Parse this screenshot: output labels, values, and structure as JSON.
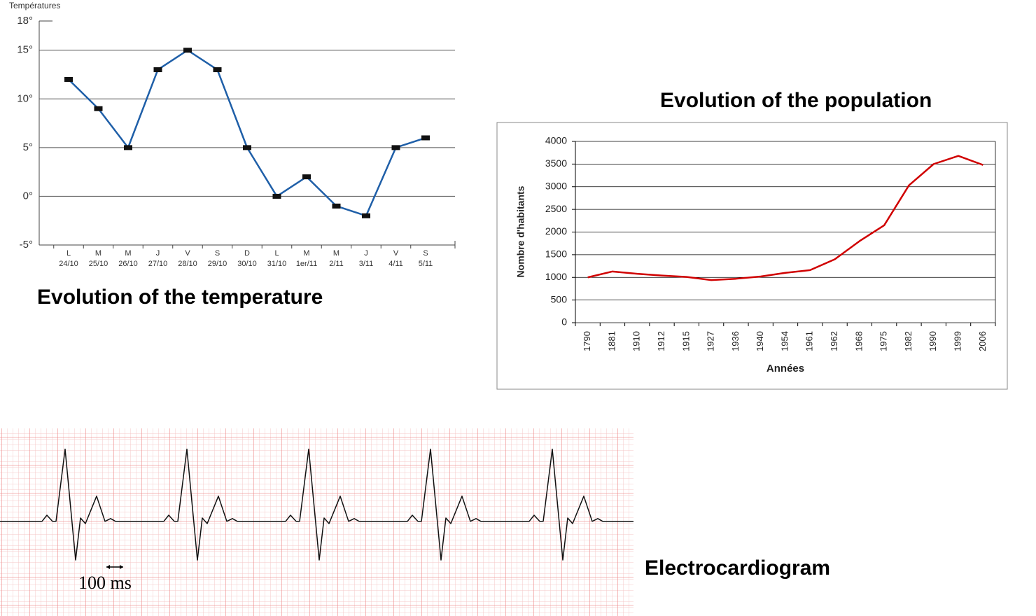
{
  "chart_data": [
    {
      "type": "line",
      "title": "Evolution of the temperature",
      "ylabel": "Températures",
      "weekdays": [
        "L",
        "M",
        "M",
        "J",
        "V",
        "S",
        "D",
        "L",
        "M",
        "M",
        "J",
        "V",
        "S"
      ],
      "categories": [
        "24/10",
        "25/10",
        "26/10",
        "27/10",
        "28/10",
        "29/10",
        "30/10",
        "31/10",
        "1er/11",
        "2/11",
        "3/11",
        "4/11",
        "5/11"
      ],
      "values": [
        12,
        9,
        5,
        13,
        15,
        13,
        5,
        0,
        2,
        -1,
        -2,
        5,
        6
      ],
      "color": "#1f5fa8",
      "marker_color": "#111111",
      "ylim": [
        -5,
        18
      ],
      "yticks": [
        {
          "value": -5,
          "label": "-5°"
        },
        {
          "value": 0,
          "label": "0°"
        },
        {
          "value": 5,
          "label": "5°"
        },
        {
          "value": 10,
          "label": "10°"
        },
        {
          "value": 15,
          "label": "15°"
        },
        {
          "value": 18,
          "label": "18°"
        }
      ],
      "grid": true
    },
    {
      "type": "line",
      "title": "Evolution of the population",
      "xlabel": "Années",
      "ylabel": "Nombre d'habitants",
      "categories": [
        "1790",
        "1881",
        "1910",
        "1912",
        "1915",
        "1927",
        "1936",
        "1940",
        "1954",
        "1961",
        "1962",
        "1968",
        "1975",
        "1982",
        "1990",
        "1999",
        "2006"
      ],
      "values": [
        1000,
        1130,
        1080,
        1040,
        1010,
        940,
        970,
        1020,
        1100,
        1160,
        1400,
        1800,
        2150,
        3030,
        3500,
        3680,
        3480
      ],
      "color": "#d00000",
      "ylim": [
        0,
        4000
      ],
      "yticks": [
        0,
        500,
        1000,
        1500,
        2000,
        2500,
        3000,
        3500,
        4000
      ],
      "grid": true
    },
    {
      "type": "line",
      "title": "Electrocardiogram",
      "annotation": "100 ms",
      "x": [
        0,
        300,
        335,
        375,
        400,
        465,
        540,
        575,
        610,
        690,
        750,
        790,
        825,
        1170,
        1205,
        1245,
        1270,
        1335,
        1410,
        1445,
        1480,
        1560,
        1620,
        1660,
        1695,
        2040,
        2075,
        2115,
        2140,
        2205,
        2280,
        2315,
        2350,
        2430,
        2490,
        2530,
        2565,
        2910,
        2945,
        2985,
        3010,
        3075,
        3150,
        3185,
        3220,
        3300,
        3360,
        3400,
        3435,
        3780,
        3815,
        3855,
        3880,
        3945,
        4020,
        4055,
        4090,
        4170,
        4230,
        4270,
        4305,
        4525
      ],
      "values": [
        0,
        0,
        1.1,
        0,
        0,
        12.9,
        -6.9,
        0.6,
        -0.4,
        4.5,
        0,
        0.5,
        0,
        0,
        1.1,
        0,
        0,
        12.9,
        -6.9,
        0.6,
        -0.4,
        4.5,
        0,
        0.5,
        0,
        0,
        1.1,
        0,
        0,
        12.9,
        -6.9,
        0.6,
        -0.4,
        4.5,
        0,
        0.5,
        0,
        0,
        1.1,
        0,
        0,
        12.9,
        -6.9,
        0.6,
        -0.4,
        4.5,
        0,
        0.5,
        0,
        0,
        1.1,
        0,
        0,
        12.9,
        -6.9,
        0.6,
        -0.4,
        4.5,
        0,
        0.5,
        0,
        0
      ],
      "color": "#111111",
      "xlim": [
        0,
        4525
      ],
      "ylim": [
        -16.9,
        16.6
      ]
    }
  ]
}
